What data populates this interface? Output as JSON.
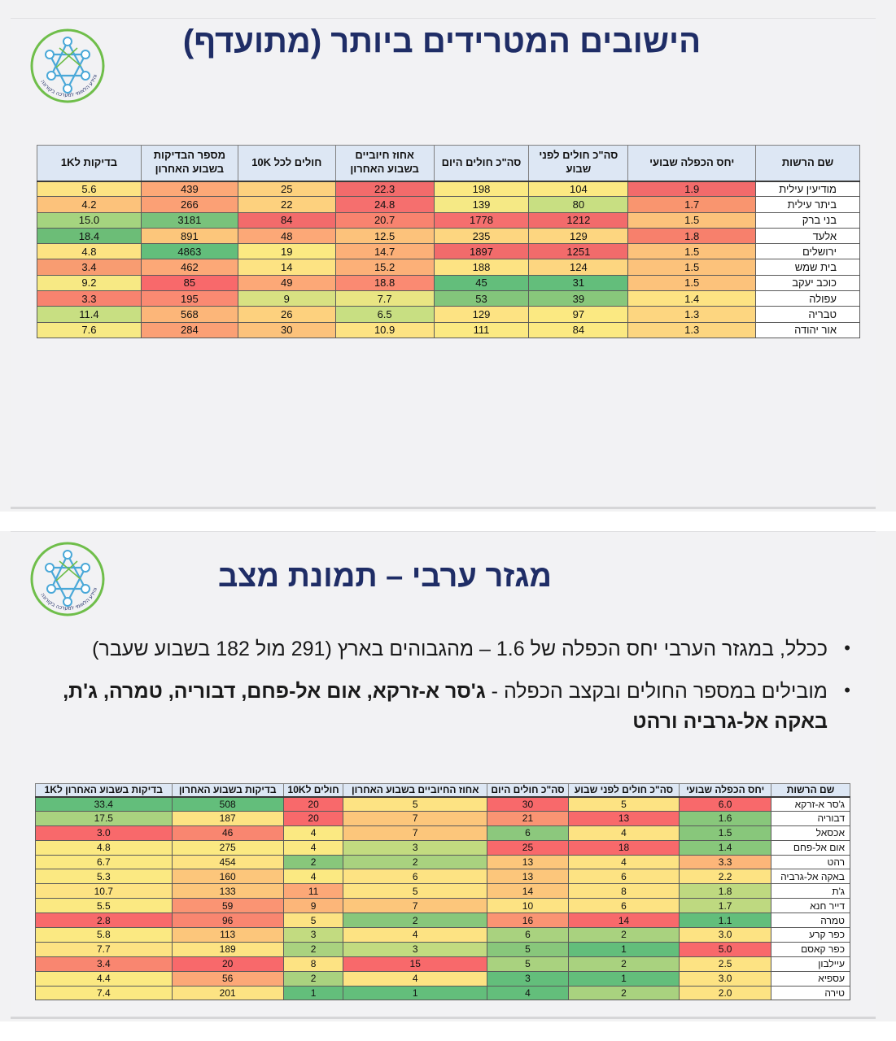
{
  "slide1": {
    "title": "הישובים המטרידים ביותר (מתועדף)",
    "table": {
      "headers": [
        "שם הרשות",
        "יחס הכפלה שבועי",
        "סה\"כ חולים לפני שבוע",
        "סה\"כ חולים היום",
        "אחוז חיוביים בשבוע האחרון",
        "חולים לכל 10K",
        "מספר הבדיקות בשבוע האחרון",
        "בדיקות ל1K"
      ],
      "rows": [
        [
          "מודיעין עילית",
          "1.9",
          "104",
          "198",
          "22.3",
          "25",
          "439",
          "5.6"
        ],
        [
          "ביתר עילית",
          "1.7",
          "80",
          "139",
          "24.8",
          "22",
          "266",
          "4.2"
        ],
        [
          "בני ברק",
          "1.5",
          "1212",
          "1778",
          "20.7",
          "84",
          "3181",
          "15.0"
        ],
        [
          "אלעד",
          "1.8",
          "129",
          "235",
          "12.5",
          "48",
          "891",
          "18.4"
        ],
        [
          "ירושלים",
          "1.5",
          "1251",
          "1897",
          "14.7",
          "19",
          "4863",
          "4.8"
        ],
        [
          "בית שמש",
          "1.5",
          "124",
          "188",
          "15.2",
          "14",
          "462",
          "3.4"
        ],
        [
          "כוכב יעקב",
          "1.5",
          "31",
          "45",
          "18.8",
          "49",
          "85",
          "9.2"
        ],
        [
          "עפולה",
          "1.4",
          "39",
          "53",
          "7.7",
          "9",
          "195",
          "3.3"
        ],
        [
          "טבריה",
          "1.3",
          "97",
          "129",
          "6.5",
          "26",
          "568",
          "11.4"
        ],
        [
          "אור יהודה",
          "1.3",
          "84",
          "111",
          "10.9",
          "30",
          "284",
          "7.6"
        ]
      ],
      "colors": [
        [
          "",
          "#f26b6b",
          "#fbe982",
          "#fbe982",
          "#f26b6b",
          "#fdd17e",
          "#fca877",
          "#fde383"
        ],
        [
          "",
          "#f9956f",
          "#c8df82",
          "#f5e985",
          "#f56f6e",
          "#fdd17e",
          "#fba075",
          "#fcc27b"
        ],
        [
          "",
          "#fcc27b",
          "#f26b6b",
          "#f56f6e",
          "#f8836f",
          "#f26b6b",
          "#79c27b",
          "#a5d47f"
        ],
        [
          "",
          "#f7806c",
          "#fdd680",
          "#fdd680",
          "#fcc27b",
          "#fca877",
          "#fcc67b",
          "#6cbd77"
        ],
        [
          "",
          "#fcc27b",
          "#f26b6b",
          "#f26b6b",
          "#fcb078",
          "#fbe982",
          "#63be7b",
          "#fde383"
        ],
        [
          "",
          "#fcc27b",
          "#fdd680",
          "#fde383",
          "#fcb078",
          "#fde383",
          "#fca877",
          "#f89c71"
        ],
        [
          "",
          "#fcc27b",
          "#63be7b",
          "#63be7b",
          "#fa8a72",
          "#fca877",
          "#f8696b",
          "#f7e984"
        ],
        [
          "",
          "#fde383",
          "#88c77b",
          "#83c57b",
          "#e9e583",
          "#d8e182",
          "#fa8a72",
          "#f8836f"
        ],
        [
          "",
          "#fdd680",
          "#fbe982",
          "#fde383",
          "#c8df82",
          "#fdd17e",
          "#fcb679",
          "#c8df82"
        ],
        [
          "",
          "#fdd680",
          "#fbe982",
          "#fbe982",
          "#fde383",
          "#fcc27b",
          "#fba075",
          "#f7e984"
        ]
      ]
    }
  },
  "slide2": {
    "title": "מגזר ערבי – תמונת מצב",
    "bullet1": "ככלל, במגזר הערבי יחס הכפלה של 1.6 – מהגבוהים בארץ (291 מול 182 בשבוע שעבר)",
    "bullet2_plain": "מובילים במספר החולים ובקצב הכפלה - ",
    "bullet2_bold": "ג'סר א-זרקא, אום אל-פחם, דבוריה, טמרה, ג'ת, באקה אל-גרביה ורהט",
    "table": {
      "headers": [
        "שם הרשות",
        "יחס הכפלה שבועי",
        "סה\"כ חולים לפני שבוע",
        "סה\"כ חולים היום",
        "אחוז החיוביים בשבוע האחרון",
        "חולים ל10K",
        "בדיקות בשבוע האחרון",
        "בדיקות בשבוע האחרון ל1K"
      ],
      "rows": [
        [
          "ג'סר א-זרקא",
          "6.0",
          "5",
          "30",
          "5",
          "20",
          "508",
          "33.4"
        ],
        [
          "דבוריה",
          "1.6",
          "13",
          "21",
          "7",
          "20",
          "187",
          "17.5"
        ],
        [
          "אכסאל",
          "1.5",
          "4",
          "6",
          "7",
          "4",
          "46",
          "3.0"
        ],
        [
          "אום אל-פחם",
          "1.4",
          "18",
          "25",
          "3",
          "4",
          "275",
          "4.8"
        ],
        [
          "רהט",
          "3.3",
          "4",
          "13",
          "2",
          "2",
          "454",
          "6.7"
        ],
        [
          "באקה אל-גרביה",
          "2.2",
          "6",
          "13",
          "6",
          "4",
          "160",
          "5.3"
        ],
        [
          "ג'ת",
          "1.8",
          "8",
          "14",
          "5",
          "11",
          "133",
          "10.7"
        ],
        [
          "דייר חנא",
          "1.7",
          "6",
          "10",
          "7",
          "9",
          "59",
          "5.5"
        ],
        [
          "טמרה",
          "1.1",
          "14",
          "16",
          "2",
          "5",
          "96",
          "2.8"
        ],
        [
          "כפר קרע",
          "3.0",
          "2",
          "6",
          "4",
          "3",
          "113",
          "5.8"
        ],
        [
          "כפר קאסם",
          "5.0",
          "1",
          "5",
          "3",
          "2",
          "189",
          "7.7"
        ],
        [
          "עיילבון",
          "2.5",
          "2",
          "5",
          "15",
          "8",
          "20",
          "3.4"
        ],
        [
          "עספיא",
          "3.0",
          "1",
          "3",
          "4",
          "2",
          "56",
          "4.4"
        ],
        [
          "טירה",
          "2.0",
          "2",
          "4",
          "1",
          "1",
          "201",
          "7.4"
        ]
      ],
      "colors": [
        [
          "",
          "#f8696b",
          "#fde383",
          "#f8696b",
          "#fde383",
          "#f8696b",
          "#63be7b",
          "#63be7b"
        ],
        [
          "",
          "#88c77b",
          "#f8696b",
          "#fa9473",
          "#fcc67b",
          "#f8696b",
          "#fde383",
          "#a9d27f"
        ],
        [
          "",
          "#88c77b",
          "#fde383",
          "#8cc87d",
          "#fcc67b",
          "#fbe982",
          "#f98670",
          "#f8696b"
        ],
        [
          "",
          "#88c77b",
          "#f8696b",
          "#f8696b",
          "#c2db80",
          "#fbe982",
          "#fbe982",
          "#fbe982"
        ],
        [
          "",
          "#fcb679",
          "#fde383",
          "#fcc67b",
          "#a9d27f",
          "#88c77b",
          "#fde383",
          "#fbe982"
        ],
        [
          "",
          "#fde383",
          "#fde383",
          "#fcc67b",
          "#fde383",
          "#fbe982",
          "#fcc67b",
          "#fbe982"
        ],
        [
          "",
          "#bed980",
          "#fde383",
          "#fcc67b",
          "#fde383",
          "#fca877",
          "#fcc67b",
          "#fde383"
        ],
        [
          "",
          "#bed980",
          "#fde383",
          "#fde383",
          "#fcc67b",
          "#fcb679",
          "#fa9473",
          "#fbe982"
        ],
        [
          "",
          "#63be7b",
          "#f8696b",
          "#fa9473",
          "#88c77b",
          "#fde383",
          "#f98670",
          "#f8696b"
        ],
        [
          "",
          "#fde383",
          "#a9d27f",
          "#a9d27f",
          "#fde383",
          "#c2db80",
          "#fcc67b",
          "#fbe982"
        ],
        [
          "",
          "#f8696b",
          "#63be7b",
          "#88c77b",
          "#c2db80",
          "#a9d27f",
          "#fde383",
          "#fde383"
        ],
        [
          "",
          "#fde383",
          "#a9d27f",
          "#a9d27f",
          "#f8696b",
          "#fde383",
          "#f8696b",
          "#f98670"
        ],
        [
          "",
          "#fde383",
          "#63be7b",
          "#63be7b",
          "#fde383",
          "#a9d27f",
          "#fca877",
          "#fbe982"
        ],
        [
          "",
          "#fde383",
          "#a9d27f",
          "#63be7b",
          "#63be7b",
          "#63be7b",
          "#fde383",
          "#fbe982"
        ]
      ]
    }
  },
  "logo": {
    "text": "מרכז המידע והידע הלאומי למערכה בקורונה",
    "ring_color": "#6fbe4a",
    "node_color": "#4aa8d8"
  }
}
